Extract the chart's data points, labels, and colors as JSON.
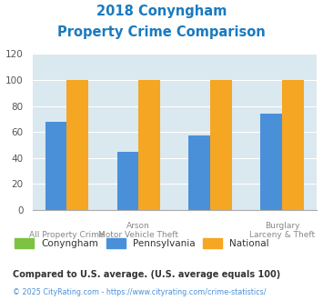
{
  "title_line1": "2018 Conyngham",
  "title_line2": "Property Crime Comparison",
  "title_color": "#1a7abf",
  "conyngham": [
    0,
    0,
    0,
    0
  ],
  "pennsylvania": [
    68,
    45,
    57,
    74
  ],
  "national": [
    100,
    100,
    100,
    100
  ],
  "conyngham_color": "#7dc242",
  "pennsylvania_color": "#4a90d9",
  "national_color": "#f5a623",
  "ylim": [
    0,
    120
  ],
  "yticks": [
    0,
    20,
    40,
    60,
    80,
    100,
    120
  ],
  "chart_bg": "#dae8f0",
  "legend_labels": [
    "Conyngham",
    "Pennsylvania",
    "National"
  ],
  "x_top_labels": [
    "",
    "Arson",
    "",
    "Burglary"
  ],
  "x_bottom_labels": [
    "All Property Crime",
    "Motor Vehicle Theft",
    "",
    "Larceny & Theft"
  ],
  "footnote1": "Compared to U.S. average. (U.S. average equals 100)",
  "footnote2": "© 2025 CityRating.com - https://www.cityrating.com/crime-statistics/",
  "footnote1_color": "#333333",
  "footnote2_color": "#4a90d9"
}
